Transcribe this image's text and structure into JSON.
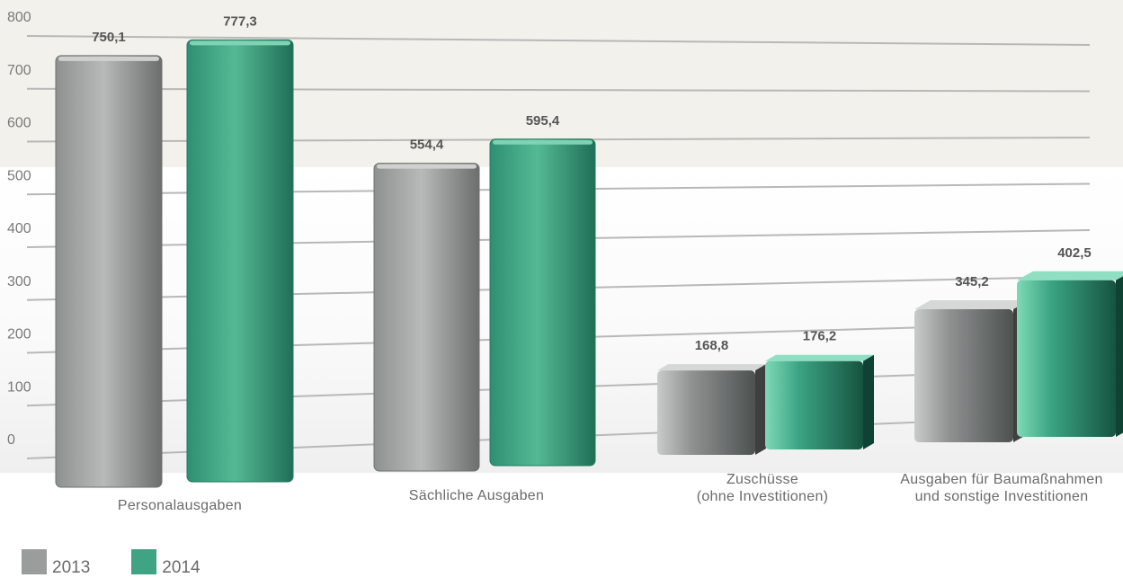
{
  "chart_data": {
    "type": "bar",
    "categories": [
      [
        "Personalausgaben"
      ],
      [
        "Sächliche Ausgaben"
      ],
      [
        "Zuschüsse",
        "(ohne Investitionen)"
      ],
      [
        "Ausgaben für Baumaßnahmen",
        "und sonstige Investitionen"
      ]
    ],
    "series": [
      {
        "name": "2013",
        "color": "#9a9d9c",
        "values": [
          750.1,
          554.4,
          168.8,
          345.2
        ],
        "labels": [
          "750,1",
          "554,4",
          "168,8",
          "345,2"
        ]
      },
      {
        "name": "2014",
        "color": "#3fa384",
        "values": [
          777.3,
          595.4,
          176.2,
          402.5
        ],
        "labels": [
          "777,3",
          "595,4",
          "176,2",
          "402,5"
        ]
      }
    ],
    "yticks": [
      "800",
      "700",
      "600",
      "500",
      "400",
      "300",
      "200",
      "100",
      "0"
    ],
    "ylim": [
      0,
      800
    ],
    "title": "",
    "xlabel": "",
    "ylabel": "",
    "grid": true,
    "legend": "bottom-left"
  }
}
